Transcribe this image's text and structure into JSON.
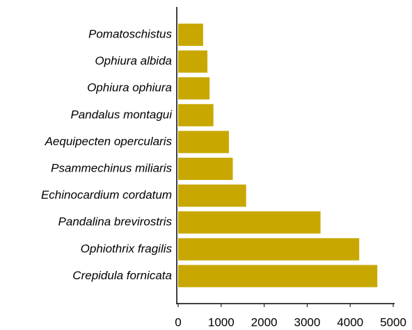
{
  "chart_data": {
    "type": "barh",
    "categories": [
      "Pomatoschistus",
      "Ophiura albida",
      "Ophiura ophiura",
      "Pandalus montagui",
      "Aequipecten opercularis",
      "Psammechinus miliaris",
      "Echinocardium cordatum",
      "Pandalina brevirostris",
      "Ophiothrix fragilis",
      "Crepidula fornicata"
    ],
    "values": [
      580,
      680,
      730,
      820,
      1180,
      1270,
      1580,
      3310,
      4210,
      4630
    ],
    "color": "#c8a800",
    "xlim": [
      0,
      5000
    ],
    "xticks": [
      0,
      1000,
      2000,
      3000,
      4000,
      5000
    ],
    "grid": false
  }
}
